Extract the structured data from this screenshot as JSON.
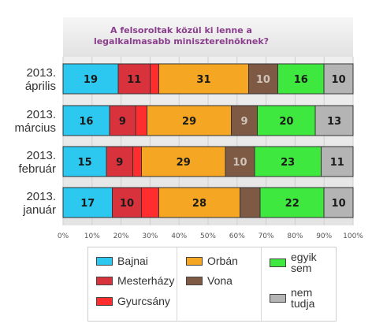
{
  "chart_data": {
    "type": "bar",
    "orientation": "horizontal",
    "stacked": true,
    "title": "A felsoroltak közül ki lenne a legalkalmasabb miniszterelnöknek?",
    "categories": [
      [
        "2013.",
        "április"
      ],
      [
        "2013.",
        "március"
      ],
      [
        "2013.",
        "február"
      ],
      [
        "2013.",
        "január"
      ]
    ],
    "series": [
      {
        "name": "Bajnai",
        "color": "#2cc8f0",
        "values": [
          19,
          16,
          15,
          17
        ],
        "labels": [
          "19",
          "16",
          "15",
          "17"
        ]
      },
      {
        "name": "Mesterházy",
        "color": "#d8323c",
        "values": [
          11,
          9,
          9,
          10
        ],
        "labels": [
          "11",
          "9",
          "9",
          "10"
        ]
      },
      {
        "name": "Gyurcsány",
        "color": "#ff2d2d",
        "values": [
          3,
          4,
          3,
          6
        ],
        "labels": [
          "",
          "",
          "",
          ""
        ]
      },
      {
        "name": "Orbán",
        "color": "#f5a623",
        "values": [
          31,
          29,
          29,
          28
        ],
        "labels": [
          "31",
          "29",
          "29",
          "28"
        ]
      },
      {
        "name": "Vona",
        "color": "#7e5a44",
        "values": [
          10,
          9,
          10,
          7
        ],
        "labels": [
          "10",
          "9",
          "10",
          ""
        ]
      },
      {
        "name": "egyik sem",
        "color": "#3ee83e",
        "values": [
          16,
          20,
          23,
          22
        ],
        "labels": [
          "16",
          "20",
          "23",
          "22"
        ]
      },
      {
        "name": "nem tudja",
        "color": "#b4b4b4",
        "values": [
          10,
          13,
          11,
          10
        ],
        "labels": [
          "10",
          "13",
          "11",
          "10"
        ]
      }
    ],
    "xlim": [
      0,
      100
    ],
    "xticks": [
      "0%",
      "10%",
      "20%",
      "30%",
      "40%",
      "50%",
      "60%",
      "70%",
      "80%",
      "90%",
      "100%"
    ],
    "grid": true,
    "legend_position": "bottom"
  },
  "legend": {
    "columns": [
      [
        {
          "name": "Bajnai",
          "color": "#2cc8f0"
        },
        {
          "name": "Mesterházy",
          "color": "#d8323c"
        },
        {
          "name": "Gyurcsány",
          "color": "#ff2d2d"
        }
      ],
      [
        {
          "name": "Orbán",
          "color": "#f5a623"
        },
        {
          "name": "Vona",
          "color": "#7e5a44"
        }
      ],
      [
        {
          "name": "egyik\nsem",
          "color": "#3ee83e"
        },
        {
          "name": "nem\ntudja",
          "color": "#b4b4b4"
        }
      ]
    ]
  }
}
